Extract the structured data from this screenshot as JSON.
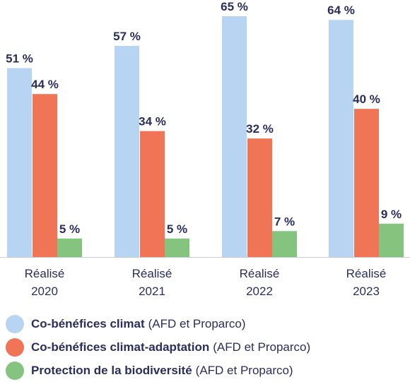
{
  "chart_data": {
    "type": "bar",
    "categories": [
      [
        "Réalisé",
        "2020"
      ],
      [
        "Réalisé",
        "2021"
      ],
      [
        "Réalisé",
        "2022"
      ],
      [
        "Réalisé",
        "2023"
      ]
    ],
    "series": [
      {
        "name": "Co-bénéfices climat",
        "name_suffix": "(AFD et Proparco)",
        "color": "#b7d4f2",
        "values": [
          51,
          57,
          65,
          64
        ],
        "labels": [
          "51 %",
          "57 %",
          "65 %",
          "64 %"
        ]
      },
      {
        "name": "Co-bénéfices climat-adaptation",
        "name_suffix": "(AFD et Proparco)",
        "color": "#f07456",
        "values": [
          44,
          34,
          32,
          40
        ],
        "labels": [
          "44 %",
          "34 %",
          "32 %",
          "40 %"
        ]
      },
      {
        "name": "Protection de la biodiversité",
        "name_suffix": "(AFD et Proparco)",
        "color": "#84c47e",
        "values": [
          5,
          5,
          7,
          9
        ],
        "labels": [
          "5 %",
          "5 %",
          "7 %",
          "9 %"
        ]
      }
    ],
    "ylim": [
      0,
      65
    ],
    "grid": false,
    "legend_position": "bottom",
    "text_color": "#2a2e5c",
    "baseline_color": "#c9ccd6"
  }
}
